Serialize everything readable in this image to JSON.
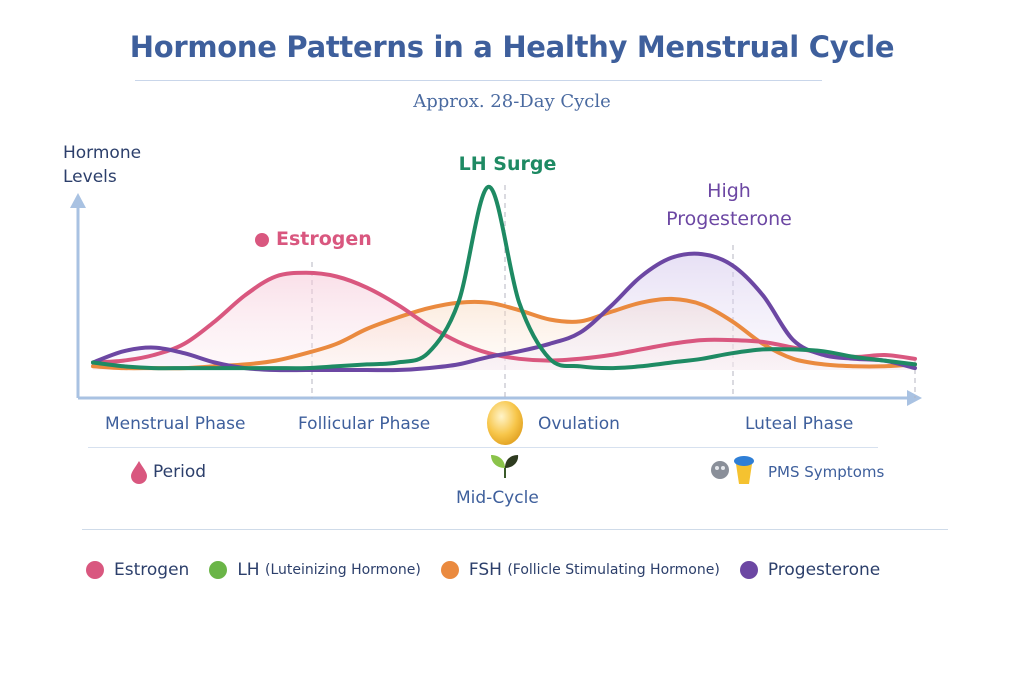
{
  "title": "Hormone Patterns in a Healthy Menstrual Cycle",
  "subtitle": "Approx. 28-Day Cycle",
  "y_axis_label_line1": "Hormone",
  "y_axis_label_line2": "Levels",
  "colors": {
    "estrogen": "#d9577f",
    "lh": "#1e8a63",
    "fsh": "#ea8a3f",
    "progesterone": "#6c47a3",
    "lh_legend": "#6ab547",
    "axis": "#a9c2e2"
  },
  "annotations": {
    "estrogen": "Estrogen",
    "lh_surge": "LH Surge",
    "high_progesterone_line1": "High",
    "high_progesterone_line2": "Progesterone"
  },
  "phases": [
    "Menstrual Phase",
    "Follicular Phase",
    "Ovulation",
    "Luteal Phase"
  ],
  "markers": {
    "period": "Period",
    "mid_cycle": "Mid-Cycle",
    "pms": "PMS Symptoms"
  },
  "icons": {
    "period": "blood-drop-icon",
    "ovulation": "egg-icon",
    "mid_cycle": "sprout-icon",
    "pms": "pms-icons"
  },
  "legend": {
    "estrogen": "Estrogen",
    "lh_main": "LH",
    "lh_paren": "(Luteinizing Hormone)",
    "fsh_main": "FSH",
    "fsh_paren": "(Follicle Stimulating Hormone)",
    "progesterone": "Progesterone"
  },
  "chart_data": {
    "type": "line",
    "x": [
      1,
      2,
      3,
      4,
      5,
      6,
      7,
      8,
      9,
      10,
      11,
      12,
      13,
      14,
      15,
      16,
      17,
      18,
      19,
      20,
      21,
      22,
      23,
      24,
      25,
      26,
      27,
      28
    ],
    "xlim": [
      1,
      28
    ],
    "ylim": [
      0,
      100
    ],
    "series": [
      {
        "name": "Estrogen",
        "values": [
          4,
          5,
          8,
          14,
          26,
          40,
          50,
          52,
          50,
          44,
          35,
          24,
          15,
          9,
          6,
          5,
          6,
          8,
          11,
          14,
          16,
          16,
          15,
          12,
          9,
          7,
          8,
          6
        ]
      },
      {
        "name": "LH",
        "values": [
          4,
          2,
          1,
          1,
          1,
          1,
          1,
          1,
          2,
          3,
          4,
          9,
          36,
          98,
          36,
          6,
          2,
          1,
          2,
          4,
          6,
          9,
          11,
          11,
          10,
          7,
          5,
          3
        ]
      },
      {
        "name": "FSH",
        "values": [
          2,
          1,
          1,
          1,
          2,
          3,
          5,
          9,
          14,
          22,
          28,
          33,
          36,
          36,
          32,
          27,
          26,
          31,
          36,
          38,
          35,
          26,
          14,
          6,
          3,
          2,
          2,
          3
        ]
      },
      {
        "name": "Progesterone",
        "values": [
          4,
          10,
          12,
          9,
          4,
          1,
          0,
          0,
          0,
          0,
          0,
          1,
          3,
          7,
          10,
          14,
          20,
          34,
          50,
          60,
          62,
          56,
          40,
          16,
          8,
          6,
          5,
          1
        ]
      }
    ]
  }
}
